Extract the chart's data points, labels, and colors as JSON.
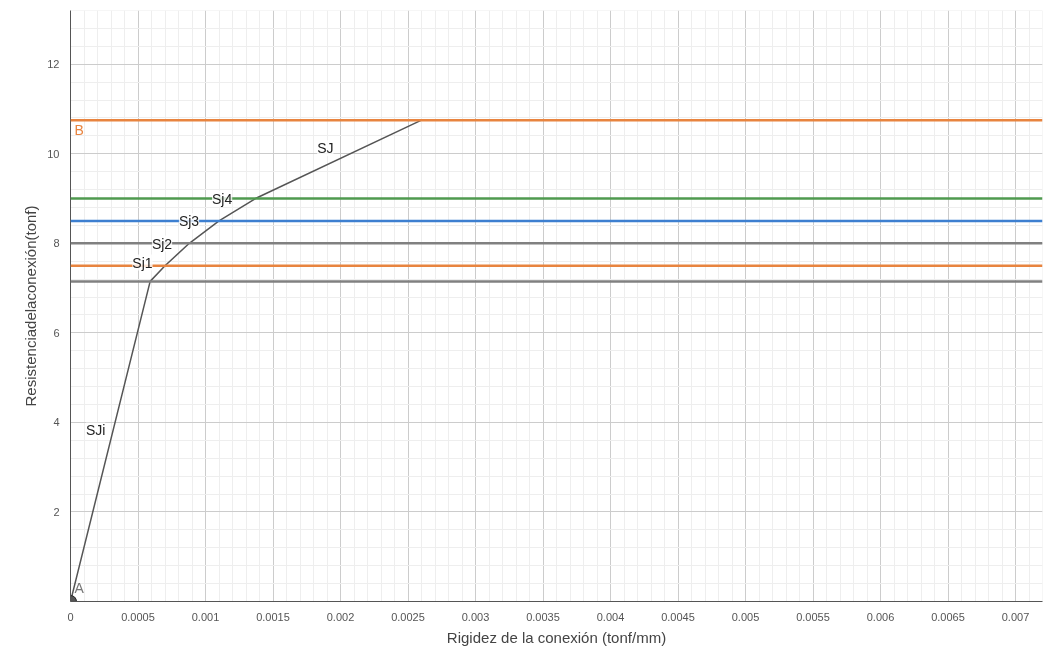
{
  "chart_data": {
    "type": "line",
    "xlabel": "Rigidez de la conexión (tonf/mm)",
    "ylabel": "Resistenciadelaconexión(tonf)",
    "x": [
      0,
      0.00059,
      0.0007,
      0.00088,
      0.0011,
      0.00137,
      0.0026
    ],
    "series": [
      {
        "color": "#555555",
        "values": [
          0,
          7.15,
          7.5,
          8,
          8.5,
          9,
          10.75
        ]
      },
      {
        "type": "scatter",
        "name": "A",
        "color": "#555555",
        "x": [
          0
        ],
        "values": [
          0
        ],
        "marker": "circle"
      }
    ],
    "marker": "none",
    "xlim": [
      0,
      0.0072
    ],
    "ylim": [
      0,
      13.2
    ],
    "xticks": [
      0,
      0.0005,
      0.001,
      0.0015,
      0.002,
      0.0025,
      0.003,
      0.0035,
      0.004,
      0.0045,
      0.005,
      0.0055,
      0.006,
      0.0065,
      0.007
    ],
    "yticks": [
      {
        "value": 0,
        "label": null
      },
      2,
      4,
      6,
      8,
      10,
      12
    ],
    "grid": true,
    "ref_lines": [
      {
        "axis": "y",
        "value": 10.75,
        "label": "B",
        "color": "#e8843f"
      },
      {
        "axis": "y",
        "value": 9,
        "label": null,
        "color": "#4f9a4f"
      },
      {
        "axis": "y",
        "value": 8.5,
        "label": null,
        "color": "#3d7fd0"
      },
      {
        "axis": "y",
        "value": 8,
        "label": null,
        "color": "#808080"
      },
      {
        "axis": "y",
        "value": 7.5,
        "label": null,
        "color": "#e8843f"
      },
      {
        "axis": "y",
        "value": 7.15,
        "label": null,
        "color": "#808080"
      }
    ],
    "annotations": [
      {
        "text": "SJi",
        "x": 0.000295,
        "y": 3.575
      },
      {
        "text": "Sj1",
        "x": 0.000645,
        "y": 7.325
      },
      {
        "text": "Sj2",
        "x": 0.00079,
        "y": 7.75
      },
      {
        "text": "Sj3",
        "x": 0.00099,
        "y": 8.25
      },
      {
        "text": "Sj4",
        "x": 0.001235,
        "y": 8.75
      },
      {
        "text": "SJ",
        "x": 0.001985,
        "y": 9.875
      }
    ]
  }
}
